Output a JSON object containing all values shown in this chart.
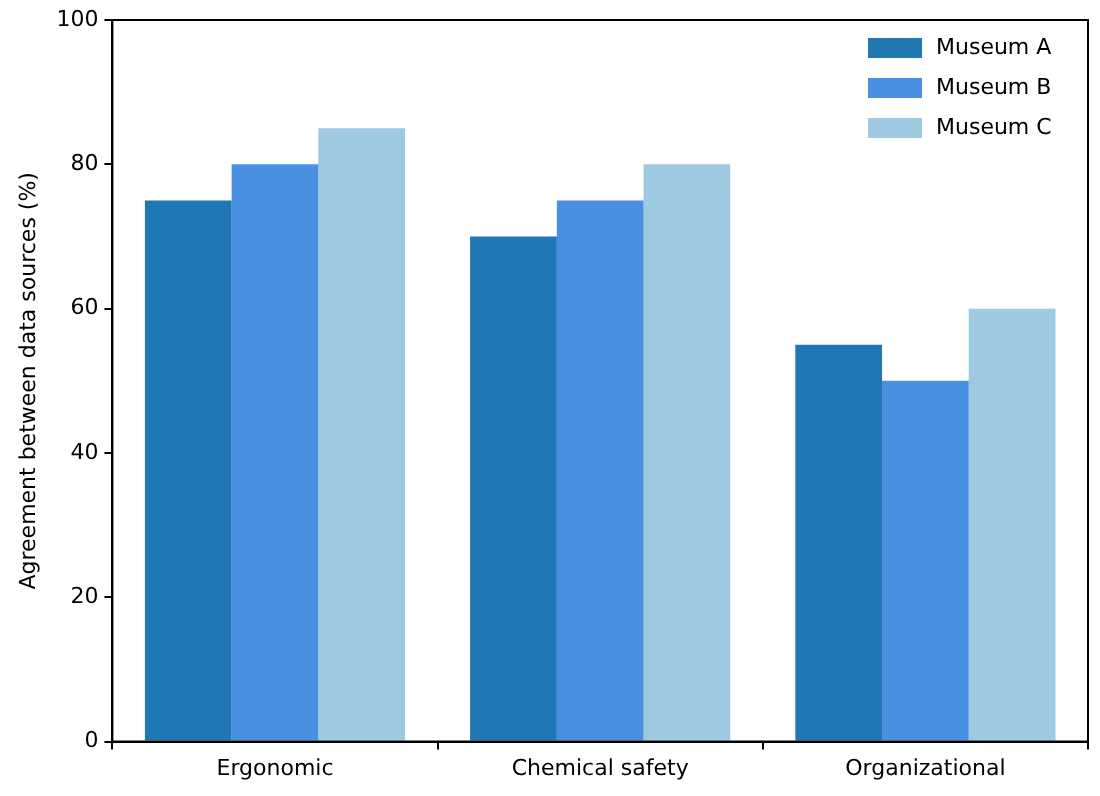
{
  "chart_data": {
    "type": "bar",
    "ylabel": "Agreement between data sources (%)",
    "categories": [
      "Ergonomic",
      "Chemical safety",
      "Organizational"
    ],
    "series": [
      {
        "name": "Museum A",
        "color": "#1f77b4",
        "values": [
          75,
          70,
          55
        ]
      },
      {
        "name": "Museum B",
        "color": "#4a90e2",
        "values": [
          80,
          75,
          50
        ]
      },
      {
        "name": "Museum C",
        "color": "#9ecae1",
        "values": [
          85,
          80,
          60
        ]
      }
    ],
    "ylim": [
      0,
      100
    ],
    "yticks": [
      0,
      20,
      40,
      60,
      80,
      100
    ],
    "grid": false,
    "legend": "top right"
  }
}
